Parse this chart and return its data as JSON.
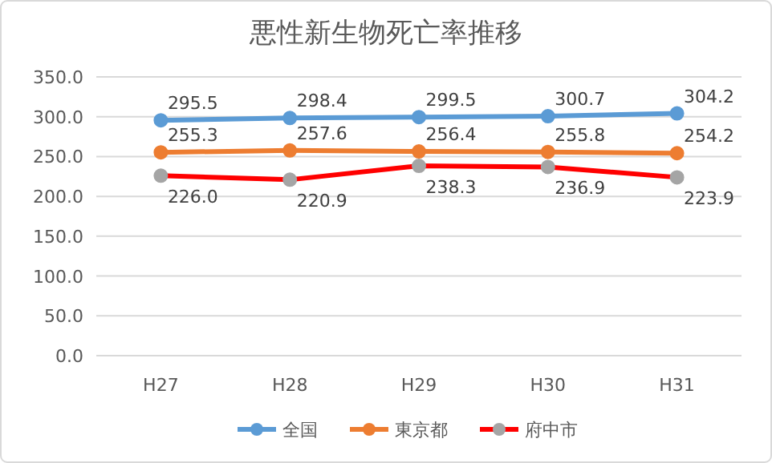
{
  "chart_data": {
    "type": "line",
    "title": "悪性新生物死亡率推移",
    "categories": [
      "H27",
      "H28",
      "H29",
      "H30",
      "H31"
    ],
    "series": [
      {
        "name": "全国",
        "color": "#5b9bd5",
        "colors": [
          "#5b9bd5",
          "#5b9bd5",
          "#5b9bd5",
          "#5b9bd5",
          "#5b9bd5"
        ],
        "values": [
          295.5,
          298.4,
          299.5,
          300.7,
          304.2
        ],
        "value_labels": [
          "295.5",
          "298.4",
          "299.5",
          "300.7",
          "304.2"
        ]
      },
      {
        "name": "東京都",
        "color": "#ed7d31",
        "colors": [
          "#ed7d31",
          "#ed7d31",
          "#ed7d31",
          "#ed7d31",
          "#ed7d31"
        ],
        "values": [
          255.3,
          257.6,
          256.4,
          255.8,
          254.2
        ],
        "value_labels": [
          "255.3",
          "257.6",
          "256.4",
          "255.8",
          "254.2"
        ]
      },
      {
        "name": "府中市",
        "color": "#ff0000",
        "colors": [
          "#a5a5a5",
          "#a5a5a5",
          "#a5a5a5",
          "#a5a5a5",
          "#a5a5a5"
        ],
        "values": [
          226.0,
          220.9,
          238.3,
          236.9,
          223.9
        ],
        "value_labels": [
          "226.0",
          "220.9",
          "238.3",
          "236.9",
          "223.9"
        ]
      }
    ],
    "ylim": [
      0,
      350
    ],
    "yticks": [
      {
        "value": 0,
        "label": "0.0"
      },
      {
        "value": 50,
        "label": "50.0"
      },
      {
        "value": 100,
        "label": "100.0"
      },
      {
        "value": 150,
        "label": "150.0"
      },
      {
        "value": 200,
        "label": "200.0"
      },
      {
        "value": 250,
        "label": "250.0"
      },
      {
        "value": 300,
        "label": "300.0"
      },
      {
        "value": 350,
        "label": "350.0"
      }
    ],
    "grid": "y",
    "legend": "bottom",
    "marker": "circle",
    "line_style": "solid"
  }
}
